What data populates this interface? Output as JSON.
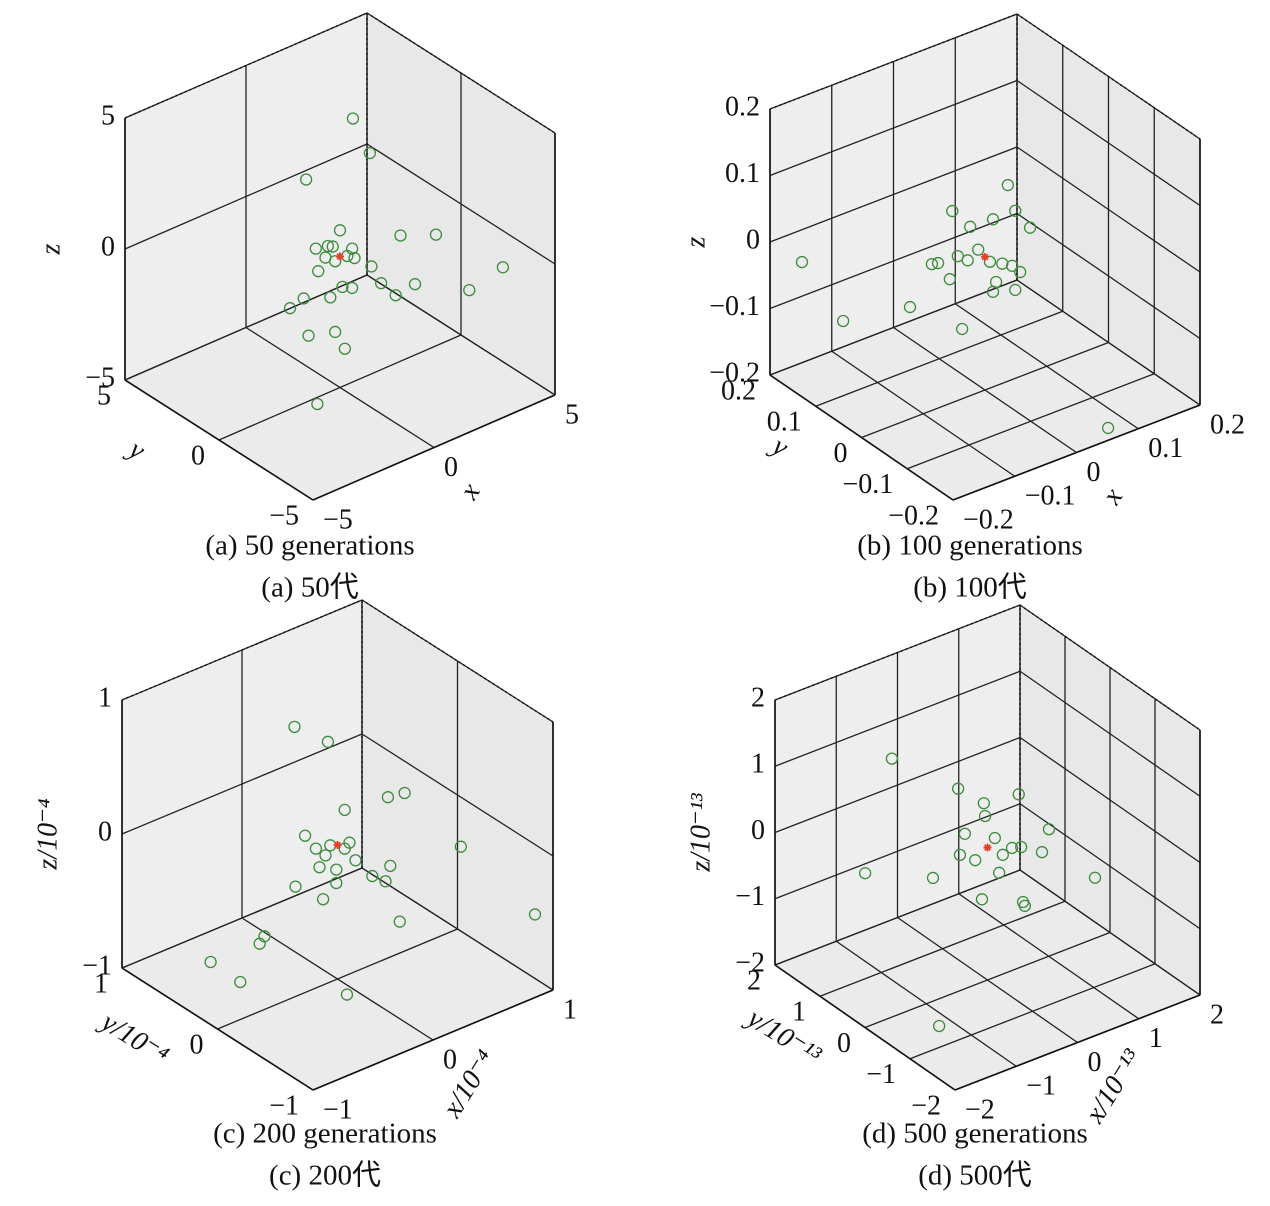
{
  "chart_data": [
    {
      "type": "scatter3d",
      "title": "(a) 50 generations",
      "subtitle": "(a) 50代",
      "xlabel": "x",
      "ylabel": "y",
      "zlabel": "z",
      "xlim": [
        -5,
        5
      ],
      "ylim": [
        -5,
        5
      ],
      "zlim": [
        -5,
        5
      ],
      "xticks": [
        {
          "value": -5,
          "label": "−5"
        },
        0,
        5
      ],
      "yticks": [
        {
          "value": -5,
          "label": "−5"
        },
        0,
        5
      ],
      "zticks": [
        {
          "value": -5,
          "label": "−5"
        },
        0,
        5
      ],
      "grid": true,
      "series": [
        {
          "color": "#3c8c3c",
          "x": [
            1.7,
            2.4,
            -1.4,
            0,
            2.5,
            2.8,
            4.4,
            3.4,
            3.1,
            2.3,
            1.7,
            1.3,
            -1.0,
            -0.9,
            -0.5,
            0.5,
            -0.9,
            -1.5,
            -0.4,
            0.1,
            0.5,
            -1.3,
            -0.2,
            0.2,
            -2.1,
            -0.3,
            0.3,
            -0.2,
            0.6,
            -0.6
          ],
          "y": [
            1.5,
            1.5,
            0,
            0,
            0,
            -1.5,
            -3,
            -2.5,
            0,
            0,
            0,
            0,
            0,
            0,
            0,
            0,
            1.5,
            0,
            0,
            0,
            0,
            0,
            0,
            0,
            -1.5,
            0,
            0,
            0,
            0,
            0
          ],
          "z": [
            3.9,
            2.3,
            3.5,
            1.0,
            -0.2,
            0.4,
            -0.8,
            -1.5,
            -2.3,
            -2.4,
            -1.7,
            -0.9,
            0.7,
            -0.2,
            0.6,
            0.1,
            -2.3,
            -1.0,
            -1.4,
            -1.2,
            -1.4,
            -2.5,
            -2.8,
            -3.6,
            -4.1,
            0.5,
            -0.1,
            -0.1,
            -0.3,
            0.2
          ]
        },
        {
          "color": "#e0402a",
          "x": [
            0
          ],
          "y": [
            0
          ],
          "z": [
            0
          ]
        }
      ]
    },
    {
      "type": "scatter3d",
      "title": "(b) 100 generations",
      "subtitle": "(b) 100代",
      "xlabel": "x",
      "ylabel": "y",
      "zlabel": "z",
      "xlim": [
        -0.2,
        0.2
      ],
      "ylim": [
        -0.2,
        0.2
      ],
      "zlim": [
        -0.2,
        0.2
      ],
      "xticks": [
        {
          "value": -0.2,
          "label": "−0.2"
        },
        {
          "value": -0.1,
          "label": "−0.1"
        },
        0,
        0.1,
        0.2
      ],
      "yticks": [
        {
          "value": -0.2,
          "label": "−0.2"
        },
        {
          "value": -0.1,
          "label": "−0.1"
        },
        0,
        0.1,
        0.2
      ],
      "zticks": [
        {
          "value": -0.2,
          "label": "−0.2"
        },
        {
          "value": -0.1,
          "label": "−0.1"
        },
        0,
        0.1,
        0.2
      ],
      "grid": true,
      "series": [
        {
          "color": "#3c8c3c",
          "x": [
            -0.163,
            -0.126,
            -0.077,
            -0.037,
            -0.053,
            -0.024,
            0.013,
            0.037,
            0.049,
            0.073,
            0.057,
            0.049,
            0.013,
            0.018,
            -0.086,
            -0.076,
            -0.057,
            0.066,
            -0.011,
            0.008,
            -0.028,
            0.028,
            0.044,
            -0.044
          ],
          "y": [
            0.18,
            0.14,
            0.06,
            0,
            0,
            0,
            0,
            0,
            0,
            0,
            0,
            0,
            0,
            0,
            0,
            0,
            0,
            -0.18,
            0,
            0,
            0,
            0,
            0,
            0
          ],
          "z": [
            -0.034,
            -0.117,
            -0.076,
            -0.095,
            0.088,
            0.054,
            0.052,
            0.095,
            0.052,
            0.018,
            -0.043,
            -0.067,
            -0.057,
            -0.044,
            0.02,
            0.018,
            -0.013,
            -0.196,
            0.015,
            -0.01,
            0.005,
            -0.02,
            -0.029,
            0.017
          ]
        },
        {
          "color": "#e0402a",
          "x": [
            0
          ],
          "y": [
            0
          ],
          "z": [
            0
          ]
        }
      ]
    },
    {
      "type": "scatter3d",
      "title": "(c) 200 generations",
      "subtitle": "(c) 200代",
      "xlabel": "x/10⁻⁴",
      "ylabel": "y/10⁻⁴",
      "zlabel": "z/10⁻⁴",
      "xlim": [
        -1,
        1
      ],
      "ylim": [
        -1,
        1
      ],
      "zlim": [
        -1,
        1
      ],
      "xticks": [
        {
          "value": -1,
          "label": "−1"
        },
        0,
        1
      ],
      "yticks": [
        {
          "value": -1,
          "label": "−1"
        },
        0,
        1
      ],
      "zticks": [
        {
          "value": -1,
          "label": "−1"
        },
        0,
        1
      ],
      "grid": true,
      "series": [
        {
          "color": "#3c8c3c",
          "x": [
            -0.12,
            -0.08,
            0.06,
            0.42,
            0.4,
            0.63,
            0.85,
            0.44,
            0.28,
            0.4,
            0.29,
            0.15,
            -0.27,
            -0.15,
            -0.01,
            -0.01,
            -0.35,
            -0.12,
            -0.41,
            -0.37,
            -0.58,
            -0.81,
            -0.16,
            -0.06,
            0.06,
            -0.18,
            -0.1,
            0.1
          ],
          "y": [
            0.3,
            0,
            0,
            0,
            -0.2,
            -0.5,
            -1,
            0,
            -0.3,
            0,
            0,
            0,
            0,
            0,
            0,
            0,
            0,
            0,
            0.3,
            0.3,
            0.6,
            0,
            -0.3,
            0,
            0,
            0,
            0,
            0
          ],
          "z": [
            0.79,
            0.8,
            0.24,
            0.2,
            0.33,
            -0.02,
            -0.38,
            -0.32,
            -0.54,
            -0.42,
            -0.34,
            -0.17,
            0.17,
            -0.11,
            -0.18,
            -0.28,
            -0.18,
            -0.36,
            -0.72,
            -0.68,
            -0.93,
            -0.72,
            -0.92,
            0.02,
            -0.05,
            0.04,
            -0.04,
            -0.02
          ]
        },
        {
          "color": "#e0402a",
          "x": [
            0
          ],
          "y": [
            0
          ],
          "z": [
            0
          ]
        }
      ]
    },
    {
      "type": "scatter3d",
      "title": "(d) 500 generations",
      "subtitle": "(d) 500代",
      "xlabel": "x/10⁻¹³",
      "ylabel": "y/10⁻¹³",
      "zlabel": "z/10⁻¹³",
      "xlim": [
        -2,
        2
      ],
      "ylim": [
        -2,
        2
      ],
      "zlim": [
        -2,
        2
      ],
      "xticks": [
        {
          "value": -2,
          "label": "−2"
        },
        {
          "value": -1,
          "label": "−1"
        },
        0,
        1,
        2
      ],
      "yticks": [
        {
          "value": -2,
          "label": "−2"
        },
        {
          "value": -1,
          "label": "−1"
        },
        0,
        1,
        2
      ],
      "zticks": [
        {
          "value": -2,
          "label": "−2"
        },
        {
          "value": -1,
          "label": "−1"
        },
        0,
        1,
        2
      ],
      "grid": true,
      "series": [
        {
          "color": "#3c8c3c",
          "x": [
            -1.12,
            -0.48,
            0.51,
            -0.06,
            0.71,
            0.89,
            0.4,
            0.55,
            1.02,
            0.58,
            0.61,
            0.19,
            -0.09,
            -0.89,
            -1.41,
            -0.37,
            -0.04,
            -0.45,
            -0.2,
            0.12,
            0.25,
            -1.23
          ],
          "y": [
            0.6,
            0,
            0,
            0,
            -0.4,
            0,
            0,
            0,
            -1,
            0,
            0,
            0,
            0,
            0,
            0.8,
            0,
            0,
            0,
            0,
            0,
            0,
            -0.6
          ],
          "z": [
            1.46,
            1.06,
            0.62,
            0.69,
            0.21,
            -0.39,
            -0.15,
            -0.19,
            -0.35,
            -1.03,
            -1.1,
            -0.45,
            -0.75,
            -0.14,
            -0.26,
            0.34,
            0.49,
            0.05,
            -0.12,
            0.1,
            -0.2,
            -1.97
          ]
        },
        {
          "color": "#e0402a",
          "x": [
            0
          ],
          "y": [
            0
          ],
          "z": [
            0
          ]
        }
      ]
    }
  ]
}
